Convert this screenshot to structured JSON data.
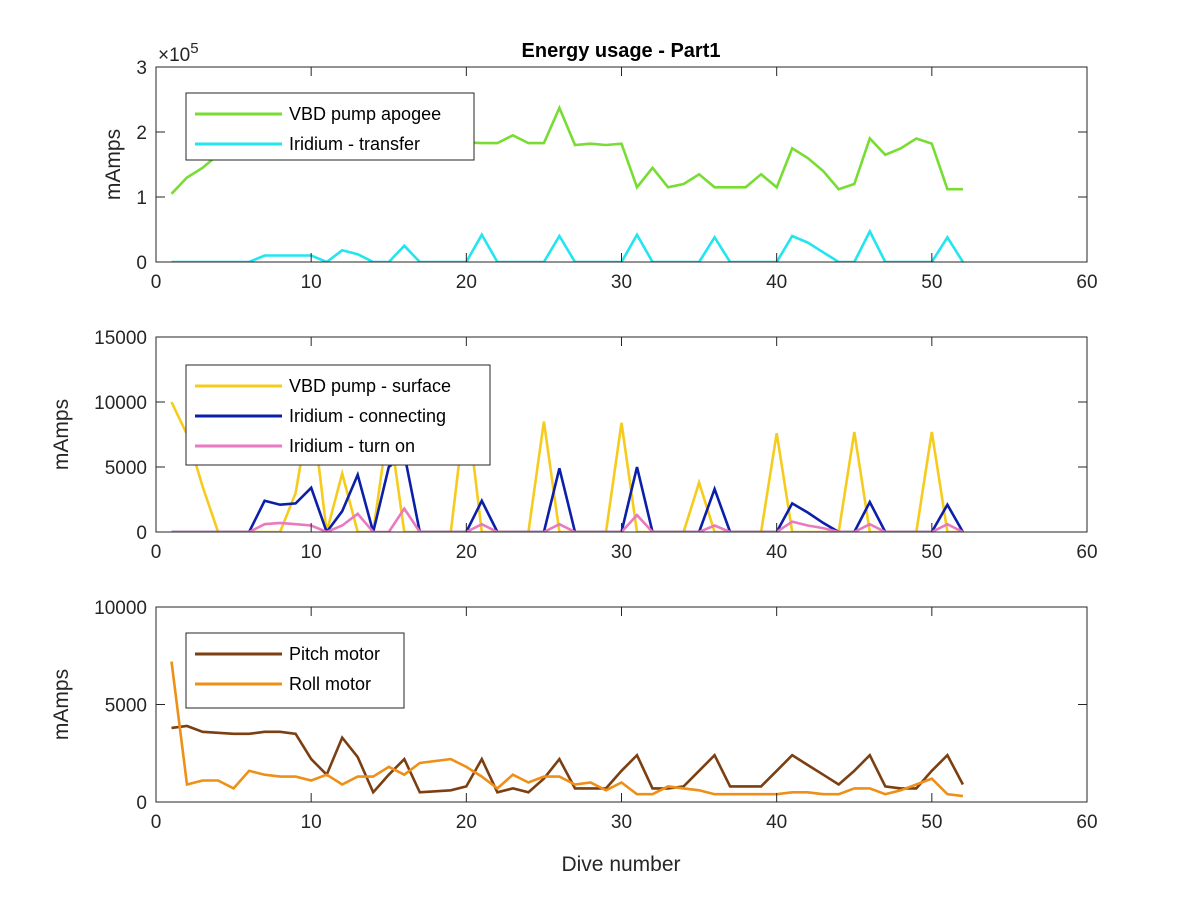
{
  "figure_title": "Energy usage - Part1",
  "chart_data": [
    {
      "type": "line",
      "title": "Energy usage - Part1",
      "xlabel": "",
      "ylabel": "mAmps",
      "xlim": [
        0,
        60
      ],
      "ylim": [
        0,
        300000
      ],
      "xticks": [
        "0",
        "10",
        "20",
        "30",
        "40",
        "50",
        "60"
      ],
      "yticks": [
        "0",
        "1",
        "2",
        "3"
      ],
      "ytick_values": [
        0,
        100000,
        200000,
        300000
      ],
      "exponent_label": "×10",
      "exponent_power": "5",
      "grid": false,
      "legend": "top-left",
      "series": [
        {
          "name": "VBD pump apogee",
          "color": "#77dd33",
          "x": [
            1,
            2,
            3,
            4,
            5,
            6,
            7,
            8,
            9,
            10,
            11,
            12,
            13,
            14,
            15,
            16,
            17,
            18,
            19,
            20,
            21,
            22,
            23,
            24,
            25,
            26,
            27,
            28,
            29,
            30,
            31,
            32,
            33,
            34,
            35,
            36,
            37,
            38,
            39,
            40,
            41,
            42,
            43,
            44,
            45,
            46,
            47,
            48,
            49,
            50,
            51,
            52
          ],
          "y": [
            105000,
            130000,
            145000,
            165000,
            175000,
            182000,
            185000,
            187000,
            188000,
            188000,
            187000,
            186000,
            186000,
            185000,
            185000,
            184000,
            184000,
            184000,
            184000,
            184000,
            183000,
            183000,
            195000,
            183000,
            183000,
            237000,
            180000,
            182000,
            180000,
            182000,
            115000,
            145000,
            115000,
            120000,
            135000,
            115000,
            115000,
            115000,
            135000,
            115000,
            175000,
            160000,
            140000,
            112000,
            120000,
            190000,
            165000,
            175000,
            190000,
            182000,
            112000,
            112000
          ]
        },
        {
          "name": "Iridium - transfer",
          "color": "#22e5f0",
          "x": [
            1,
            2,
            3,
            4,
            5,
            6,
            7,
            8,
            9,
            10,
            11,
            12,
            13,
            14,
            15,
            16,
            17,
            18,
            19,
            20,
            21,
            22,
            23,
            24,
            25,
            26,
            27,
            28,
            29,
            30,
            31,
            32,
            33,
            34,
            35,
            36,
            37,
            38,
            39,
            40,
            41,
            42,
            43,
            44,
            45,
            46,
            47,
            48,
            49,
            50,
            51,
            52
          ],
          "y": [
            0,
            0,
            0,
            0,
            0,
            0,
            10000,
            10000,
            10000,
            10000,
            0,
            18000,
            12000,
            0,
            0,
            25000,
            0,
            0,
            0,
            0,
            42000,
            0,
            0,
            0,
            0,
            40000,
            0,
            0,
            0,
            0,
            42000,
            0,
            0,
            0,
            0,
            38000,
            0,
            0,
            0,
            0,
            40000,
            30000,
            15000,
            0,
            0,
            47000,
            0,
            0,
            0,
            0,
            38000,
            0
          ]
        }
      ]
    },
    {
      "type": "line",
      "title": "",
      "xlabel": "",
      "ylabel": "mAmps",
      "xlim": [
        0,
        60
      ],
      "ylim": [
        0,
        15000
      ],
      "xticks": [
        "0",
        "10",
        "20",
        "30",
        "40",
        "50",
        "60"
      ],
      "yticks": [
        "0",
        "5000",
        "10000",
        "15000"
      ],
      "ytick_values": [
        0,
        5000,
        10000,
        15000
      ],
      "grid": false,
      "legend": "top-left",
      "series": [
        {
          "name": "VBD pump - surface",
          "color": "#f5cc1d",
          "x": [
            1,
            2,
            3,
            4,
            5,
            6,
            7,
            8,
            9,
            10,
            11,
            12,
            13,
            14,
            15,
            16,
            17,
            18,
            19,
            20,
            21,
            22,
            23,
            24,
            25,
            26,
            27,
            28,
            29,
            30,
            31,
            32,
            33,
            34,
            35,
            36,
            37,
            38,
            39,
            40,
            41,
            42,
            43,
            44,
            45,
            46,
            47,
            48,
            49,
            50,
            51,
            52
          ],
          "y": [
            10000,
            7500,
            3500,
            0,
            0,
            0,
            0,
            0,
            3000,
            10000,
            0,
            4500,
            0,
            0,
            8500,
            0,
            0,
            0,
            0,
            10000,
            0,
            0,
            0,
            0,
            8500,
            0,
            0,
            0,
            0,
            8400,
            0,
            0,
            0,
            0,
            3800,
            0,
            0,
            0,
            0,
            7600,
            0,
            0,
            0,
            0,
            7700,
            0,
            0,
            0,
            0,
            7700,
            0,
            0
          ]
        },
        {
          "name": "Iridium - connecting",
          "color": "#0b1fa8",
          "x": [
            1,
            2,
            3,
            4,
            5,
            6,
            7,
            8,
            9,
            10,
            11,
            12,
            13,
            14,
            15,
            16,
            17,
            18,
            19,
            20,
            21,
            22,
            23,
            24,
            25,
            26,
            27,
            28,
            29,
            30,
            31,
            32,
            33,
            34,
            35,
            36,
            37,
            38,
            39,
            40,
            41,
            42,
            43,
            44,
            45,
            46,
            47,
            48,
            49,
            50,
            51,
            52
          ],
          "y": [
            0,
            0,
            0,
            0,
            0,
            0,
            2400,
            2100,
            2200,
            3400,
            0,
            1600,
            4400,
            0,
            5000,
            6000,
            0,
            0,
            0,
            0,
            2400,
            0,
            0,
            0,
            0,
            4900,
            0,
            0,
            0,
            0,
            5000,
            0,
            0,
            0,
            0,
            3300,
            0,
            0,
            0,
            0,
            2200,
            1500,
            700,
            0,
            0,
            2300,
            0,
            0,
            0,
            0,
            2100,
            0
          ]
        },
        {
          "name": "Iridium - turn on",
          "color": "#e97ac0",
          "x": [
            1,
            2,
            3,
            4,
            5,
            6,
            7,
            8,
            9,
            10,
            11,
            12,
            13,
            14,
            15,
            16,
            17,
            18,
            19,
            20,
            21,
            22,
            23,
            24,
            25,
            26,
            27,
            28,
            29,
            30,
            31,
            32,
            33,
            34,
            35,
            36,
            37,
            38,
            39,
            40,
            41,
            42,
            43,
            44,
            45,
            46,
            47,
            48,
            49,
            50,
            51,
            52
          ],
          "y": [
            0,
            0,
            0,
            0,
            0,
            0,
            600,
            700,
            600,
            500,
            0,
            500,
            1400,
            0,
            0,
            1800,
            0,
            0,
            0,
            0,
            600,
            0,
            0,
            0,
            0,
            600,
            0,
            0,
            0,
            0,
            1300,
            0,
            0,
            0,
            0,
            500,
            0,
            0,
            0,
            0,
            800,
            500,
            300,
            0,
            0,
            600,
            0,
            0,
            0,
            0,
            600,
            0
          ]
        }
      ]
    },
    {
      "type": "line",
      "title": "",
      "xlabel": "Dive number",
      "ylabel": "mAmps",
      "xlim": [
        0,
        60
      ],
      "ylim": [
        0,
        10000
      ],
      "xticks": [
        "0",
        "10",
        "20",
        "30",
        "40",
        "50",
        "60"
      ],
      "yticks": [
        "0",
        "5000",
        "10000"
      ],
      "ytick_values": [
        0,
        5000,
        10000
      ],
      "grid": false,
      "legend": "top-left",
      "series": [
        {
          "name": "Pitch motor",
          "color": "#7b3f12",
          "x": [
            1,
            2,
            3,
            4,
            5,
            6,
            7,
            8,
            9,
            10,
            11,
            12,
            13,
            14,
            15,
            16,
            17,
            18,
            19,
            20,
            21,
            22,
            23,
            24,
            25,
            26,
            27,
            28,
            29,
            30,
            31,
            32,
            33,
            34,
            35,
            36,
            37,
            38,
            39,
            40,
            41,
            42,
            43,
            44,
            45,
            46,
            47,
            48,
            49,
            50,
            51,
            52
          ],
          "y": [
            3800,
            3900,
            3600,
            3550,
            3500,
            3500,
            3600,
            3600,
            3500,
            2200,
            1400,
            3300,
            2300,
            500,
            1400,
            2200,
            500,
            550,
            600,
            800,
            2200,
            500,
            700,
            500,
            1200,
            2200,
            700,
            700,
            700,
            1600,
            2400,
            700,
            700,
            800,
            1600,
            2400,
            800,
            800,
            800,
            1600,
            2400,
            1900,
            1400,
            900,
            1600,
            2400,
            800,
            700,
            700,
            1600,
            2400,
            900
          ]
        },
        {
          "name": "Roll motor",
          "color": "#ee8f18",
          "x": [
            1,
            2,
            3,
            4,
            5,
            6,
            7,
            8,
            9,
            10,
            11,
            12,
            13,
            14,
            15,
            16,
            17,
            18,
            19,
            20,
            21,
            22,
            23,
            24,
            25,
            26,
            27,
            28,
            29,
            30,
            31,
            32,
            33,
            34,
            35,
            36,
            37,
            38,
            39,
            40,
            41,
            42,
            43,
            44,
            45,
            46,
            47,
            48,
            49,
            50,
            51,
            52
          ],
          "y": [
            7200,
            900,
            1100,
            1100,
            700,
            1600,
            1400,
            1300,
            1300,
            1100,
            1400,
            900,
            1300,
            1300,
            1800,
            1400,
            2000,
            2100,
            2200,
            1800,
            1300,
            700,
            1400,
            1000,
            1300,
            1300,
            900,
            1000,
            600,
            1000,
            400,
            400,
            800,
            700,
            600,
            400,
            400,
            400,
            400,
            400,
            500,
            500,
            400,
            400,
            700,
            700,
            400,
            600,
            900,
            1200,
            400,
            300
          ]
        }
      ]
    }
  ]
}
